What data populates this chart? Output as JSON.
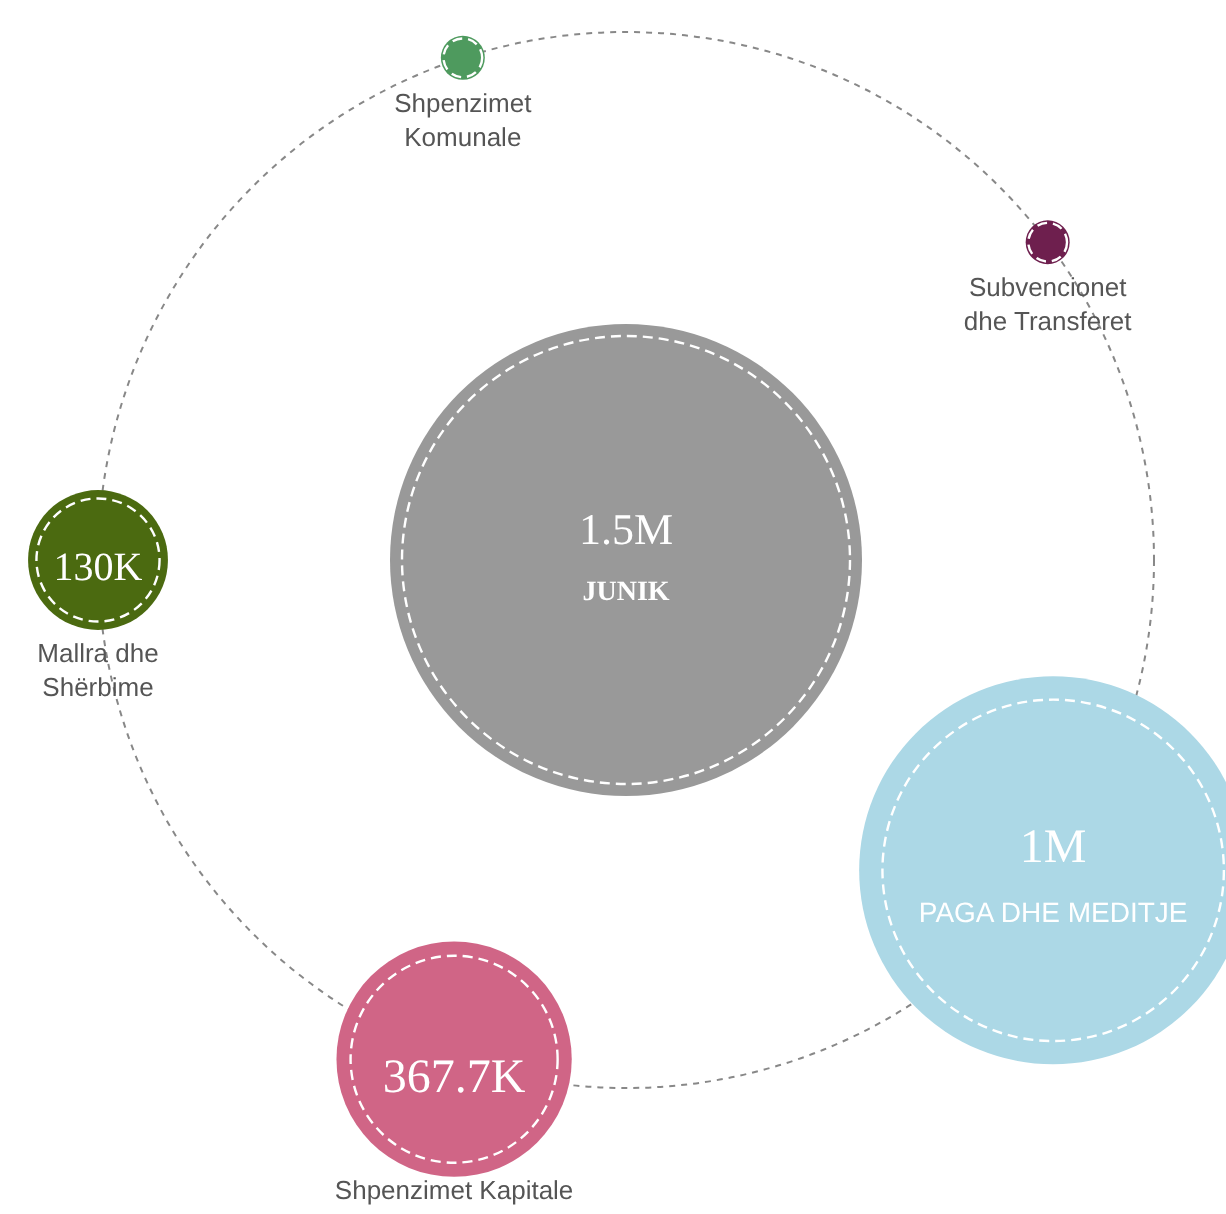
{
  "chart_data": {
    "type": "other",
    "title": "JUNIK",
    "subtitle": "1.5M",
    "categories": [
      "Shpenzimet Komunale",
      "Subvencionet dhe Transferet",
      "PAGA DHE MEDITJE",
      "Shpenzimet Kapitale",
      "Mallra dhe Shërbime"
    ],
    "values": [
      null,
      null,
      1000000,
      367700,
      130000
    ],
    "value_labels": [
      null,
      null,
      "1M",
      "367.7K",
      "130K"
    ],
    "colors": [
      "#4e9a5e",
      "#6e1f4e",
      "#acd8e6",
      "#d06586",
      "#4b6a10"
    ]
  }
}
